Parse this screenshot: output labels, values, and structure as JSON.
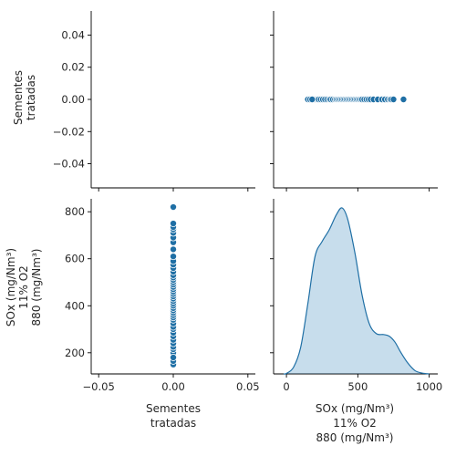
{
  "chart_data": {
    "type": "pairplot",
    "variables": [
      "Sementes\ntratadas",
      "SOx (mg/Nm³)\n11% O2\n880 (mg/Nm³)"
    ],
    "color": "#1f77b4",
    "points": {
      "sementes": [
        0,
        0,
        0,
        0,
        0,
        0,
        0,
        0,
        0,
        0,
        0,
        0,
        0,
        0,
        0,
        0,
        0,
        0,
        0,
        0,
        0,
        0,
        0,
        0,
        0,
        0,
        0,
        0,
        0,
        0,
        0,
        0,
        0,
        0,
        0,
        0,
        0,
        0,
        0,
        0,
        0,
        0,
        0,
        0,
        0,
        0,
        0
      ],
      "sox": [
        150,
        165,
        185,
        200,
        215,
        225,
        240,
        255,
        270,
        285,
        300,
        310,
        325,
        340,
        350,
        360,
        370,
        380,
        390,
        400,
        410,
        420,
        430,
        440,
        450,
        460,
        470,
        480,
        490,
        500,
        510,
        520,
        530,
        545,
        560,
        575,
        590,
        610,
        640,
        670,
        690,
        710,
        725,
        735,
        750,
        820,
        180
      ]
    },
    "kde": {
      "x": [
        -20,
        0,
        50,
        100,
        150,
        200,
        250,
        300,
        350,
        390,
        430,
        480,
        530,
        580,
        630,
        680,
        720,
        760,
        800,
        850,
        900,
        950,
        1000
      ],
      "density": [
        0,
        0.003,
        0.04,
        0.16,
        0.42,
        0.7,
        0.79,
        0.86,
        0.95,
        0.99,
        0.92,
        0.72,
        0.47,
        0.3,
        0.24,
        0.235,
        0.225,
        0.19,
        0.13,
        0.065,
        0.02,
        0.005,
        0
      ]
    },
    "panels": {
      "top_left": {
        "ylim": [
          -0.055,
          0.055
        ],
        "yticks": [
          "0.04",
          "0.02",
          "0.00",
          "−0.02",
          "−0.04"
        ],
        "yvals": [
          0.04,
          0.02,
          0.0,
          -0.02,
          -0.04
        ]
      },
      "bottom_left": {
        "xlim": [
          -0.055,
          0.055
        ],
        "xticks": [
          "−0.05",
          "0.00",
          "0.05"
        ],
        "xvals": [
          -0.05,
          0.0,
          0.05
        ],
        "ylim": [
          110,
          855
        ],
        "yticks": [
          "800",
          "600",
          "400",
          "200"
        ],
        "yvals": [
          800,
          600,
          400,
          200
        ]
      },
      "bottom_right": {
        "xlim": [
          -90,
          1060
        ],
        "xticks": [
          "0",
          "500",
          "1000"
        ],
        "xvals": [
          0,
          500,
          1000
        ]
      }
    },
    "xlabels": [
      "Sementes",
      "tratadas"
    ],
    "xlabels2": [
      "SOx (mg/Nm³)",
      "11% O2",
      "880 (mg/Nm³)"
    ],
    "ylabels": [
      "Sementes",
      "tratadas"
    ],
    "ylabels2": [
      "SOx (mg/Nm³)",
      "11% O2",
      "880 (mg/Nm³)"
    ]
  }
}
